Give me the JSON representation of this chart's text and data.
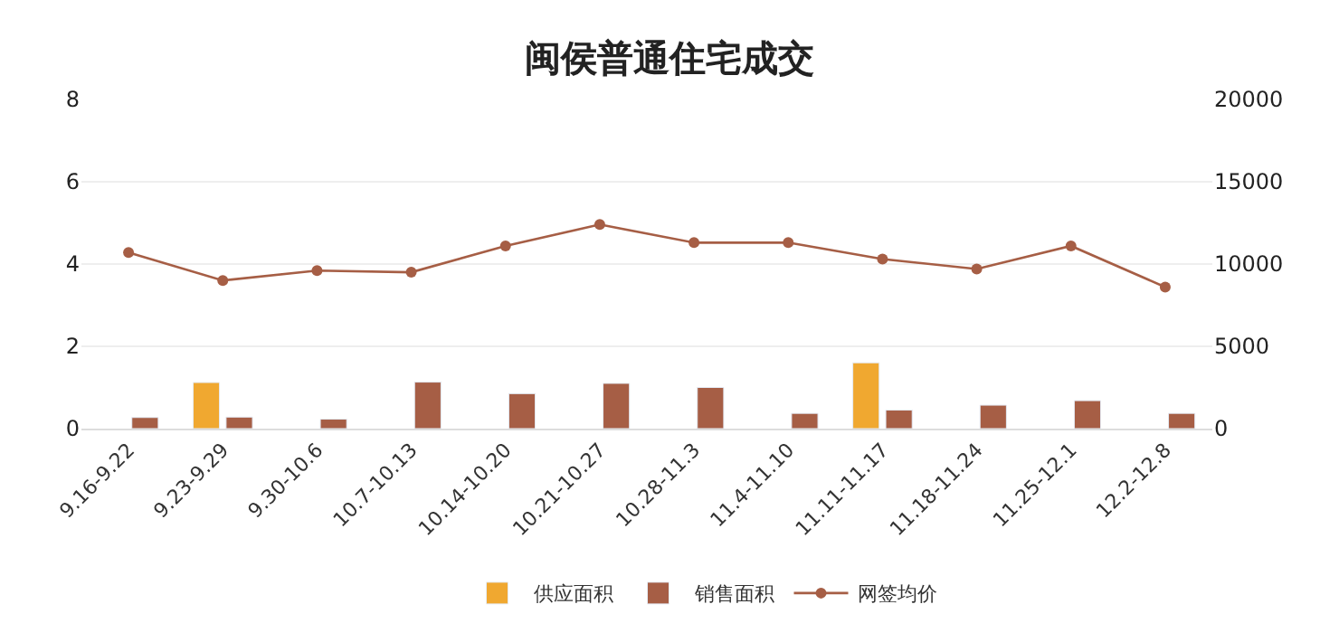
{
  "chart_data": {
    "type": "bar",
    "title": "闽侯普通住宅成交",
    "categories": [
      "9.16-9.22",
      "9.23-9.29",
      "9.30-10.6",
      "10.7-10.13",
      "10.14-10.20",
      "10.21-10.27",
      "10.28-11.3",
      "11.4-11.10",
      "11.11-11.17",
      "11.18-11.24",
      "11.25-12.1",
      "12.2-12.8"
    ],
    "series": [
      {
        "name": "供应面积",
        "color": "#f0a830",
        "values": [
          null,
          1.12,
          null,
          null,
          null,
          null,
          null,
          null,
          1.6,
          null,
          null,
          null
        ]
      },
      {
        "name": "销售面积",
        "color": "#a65e45",
        "values": [
          0.27,
          0.28,
          0.23,
          1.13,
          0.85,
          1.1,
          1.0,
          0.37,
          0.45,
          0.57,
          0.68,
          0.37
        ]
      },
      {
        "name": "网签均价",
        "color": "#a65e45",
        "type": "line",
        "axis": "y2",
        "marker": "circle",
        "values": [
          10700,
          9000,
          9600,
          9500,
          11100,
          12400,
          11300,
          11300,
          10300,
          9700,
          11100,
          8600
        ]
      }
    ],
    "ylim": [
      0,
      8
    ],
    "yticks": [
      0,
      2,
      4,
      6,
      8
    ],
    "y2lim": [
      0,
      20000
    ],
    "y2ticks": [
      0,
      5000,
      10000,
      15000,
      20000
    ],
    "grid": "y",
    "legend": "bottom"
  }
}
